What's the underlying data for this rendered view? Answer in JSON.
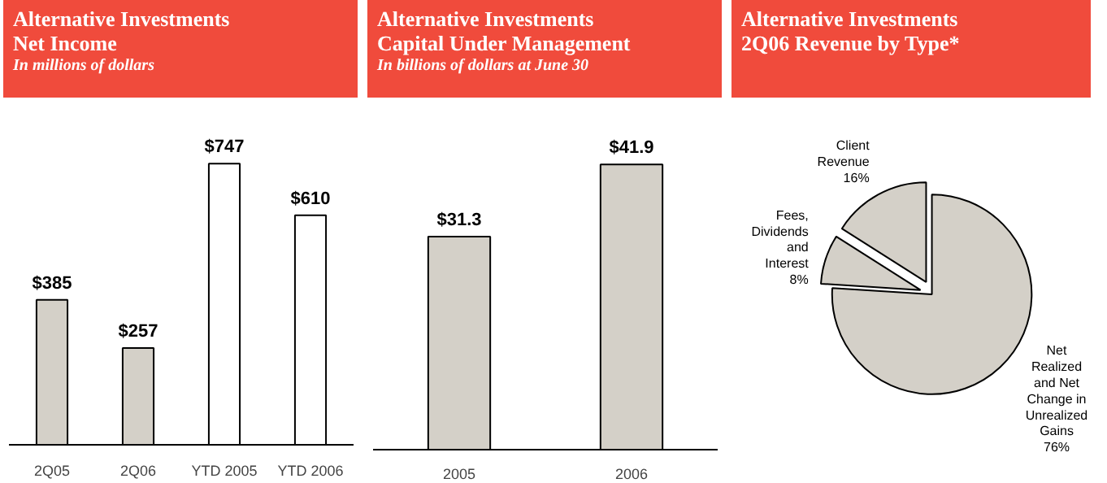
{
  "chart_data": [
    {
      "type": "bar",
      "title": "Alternative Investments\nNet Income",
      "subtitle": "In millions of dollars",
      "categories": [
        "2Q05",
        "2Q06",
        "YTD 2005",
        "YTD 2006"
      ],
      "values": [
        385,
        257,
        747,
        610
      ],
      "colors": [
        "#d4d0c8",
        "#d4d0c8",
        "#ffffff",
        "#ffffff"
      ],
      "value_labels": [
        "$385",
        "$257",
        "$747",
        "$610"
      ]
    },
    {
      "type": "bar",
      "title": "Alternative Investments\nCapital Under Management",
      "subtitle": "In billions of dollars at June 30",
      "categories": [
        "2005",
        "2006"
      ],
      "values": [
        31.3,
        41.9
      ],
      "colors": [
        "#d4d0c8",
        "#d4d0c8"
      ],
      "value_labels": [
        "$31.3",
        "$41.9"
      ]
    },
    {
      "type": "pie",
      "title": "Alternative Investments\n2Q06 Revenue by Type*",
      "categories": [
        "Client\nRevenue",
        "Fees,\nDividends\nand\nInterest",
        "Net\nRealized\nand Net\nChange in\nUnrealized\nGains"
      ],
      "values": [
        16,
        8,
        76
      ],
      "colors": [
        "#d4d0c8",
        "#d4d0c8",
        "#d4d0c8"
      ],
      "value_labels": [
        "16%",
        "8%",
        "76%"
      ]
    }
  ]
}
